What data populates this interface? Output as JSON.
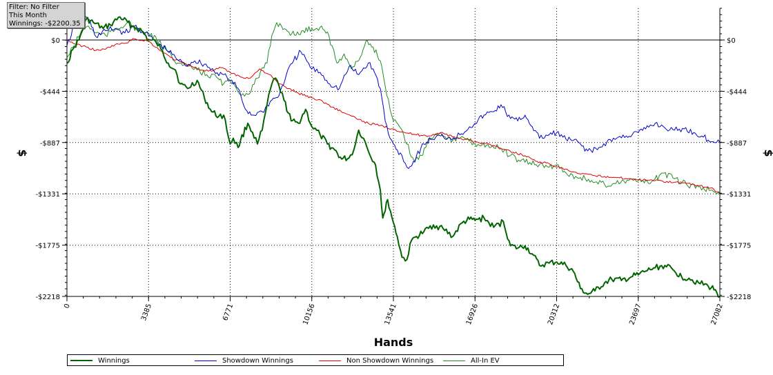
{
  "info_box": {
    "filter": "Filter: No Filter",
    "period": "This Month",
    "winnings": "Winnings: -$2200.35"
  },
  "chart_data": {
    "type": "line",
    "xlabel": "Hands",
    "ylabel": "$",
    "xlim": [
      0,
      27082
    ],
    "ylim": [
      -2218,
      0
    ],
    "x_ticks": [
      0,
      3385,
      6771,
      10156,
      13541,
      16926,
      20312,
      23697,
      27082
    ],
    "y_ticks": [
      0,
      -444,
      -887,
      -1331,
      -1775,
      -2218
    ],
    "y_tick_labels": [
      "$0",
      "-$444",
      "-$887",
      "-$1331",
      "-$1775",
      "-$2218"
    ],
    "grid": true,
    "legend_position": "bottom",
    "series": [
      {
        "name": "Winnings",
        "color": "#006400",
        "width": 2,
        "x": [
          0,
          300,
          500,
          800,
          1100,
          1500,
          1800,
          2200,
          2700,
          3100,
          3385,
          3700,
          3900,
          4200,
          4500,
          4700,
          5000,
          5400,
          5700,
          6000,
          6300,
          6500,
          6771,
          6900,
          7100,
          7200,
          7500,
          7700,
          7900,
          8100,
          8300,
          8500,
          8650,
          8800,
          9000,
          9300,
          9600,
          9900,
          10156,
          10500,
          10800,
          11100,
          11400,
          11700,
          11900,
          12100,
          12300,
          12500,
          12800,
          13000,
          13100,
          13200,
          13300,
          13541,
          13700,
          13900,
          14100,
          14300,
          14500,
          14800,
          15200,
          15600,
          16000,
          16400,
          16700,
          16926,
          17300,
          17700,
          18100,
          18400,
          18700,
          19000,
          19300,
          19600,
          20000,
          20312,
          20700,
          21000,
          21300,
          21600,
          21900,
          22300,
          22600,
          23000,
          23400,
          23697,
          24000,
          24400,
          24800,
          25200,
          25500,
          25800,
          26200,
          26600,
          26900,
          27082
        ],
        "y": [
          -200,
          -60,
          0,
          180,
          150,
          100,
          130,
          200,
          120,
          80,
          0,
          -20,
          -80,
          -200,
          -260,
          -380,
          -420,
          -350,
          -500,
          -620,
          -660,
          -650,
          -900,
          -850,
          -930,
          -870,
          -720,
          -800,
          -900,
          -780,
          -560,
          -380,
          -330,
          -400,
          -520,
          -700,
          -720,
          -600,
          -750,
          -820,
          -900,
          -950,
          -1030,
          -1020,
          -950,
          -780,
          -850,
          -960,
          -1080,
          -1300,
          -1540,
          -1480,
          -1380,
          -1580,
          -1700,
          -1880,
          -1900,
          -1730,
          -1700,
          -1660,
          -1600,
          -1630,
          -1700,
          -1580,
          -1550,
          -1560,
          -1540,
          -1620,
          -1570,
          -1780,
          -1800,
          -1780,
          -1850,
          -1950,
          -1930,
          -1920,
          -1950,
          -2000,
          -2150,
          -2200,
          -2170,
          -2100,
          -2070,
          -2080,
          -2050,
          -2030,
          -2000,
          -1970,
          -1950,
          -2000,
          -2050,
          -2060,
          -2100,
          -2130,
          -2160,
          -2218
        ]
      },
      {
        "name": "Showdown Winnings",
        "color": "#0000cc",
        "width": 1,
        "x": [
          0,
          300,
          600,
          900,
          1200,
          1600,
          2000,
          2400,
          2800,
          3385,
          3700,
          4100,
          4500,
          4900,
          5300,
          5700,
          6100,
          6500,
          6771,
          7100,
          7400,
          7700,
          8100,
          8500,
          8800,
          9100,
          9400,
          9700,
          10156,
          10500,
          10900,
          11300,
          11700,
          12100,
          12500,
          12700,
          13000,
          13200,
          13400,
          13541,
          13700,
          13900,
          14100,
          14300,
          14500,
          14800,
          15100,
          15500,
          15900,
          16300,
          16700,
          16926,
          17300,
          17700,
          18000,
          18400,
          18700,
          19000,
          19300,
          19600,
          20000,
          20312,
          20700,
          21000,
          21300,
          21600,
          22000,
          22400,
          22800,
          23200,
          23697,
          24000,
          24400,
          24800,
          25200,
          25600,
          26000,
          26400,
          26800,
          27082
        ],
        "y": [
          -50,
          120,
          200,
          180,
          30,
          80,
          100,
          60,
          120,
          40,
          -20,
          -80,
          -150,
          -220,
          -180,
          -210,
          -270,
          -300,
          -350,
          -420,
          -600,
          -650,
          -620,
          -520,
          -480,
          -300,
          -180,
          -100,
          -250,
          -280,
          -380,
          -420,
          -230,
          -300,
          -200,
          -250,
          -420,
          -700,
          -850,
          -900,
          -950,
          -1000,
          -1100,
          -1090,
          -1000,
          -900,
          -860,
          -830,
          -850,
          -820,
          -750,
          -720,
          -650,
          -620,
          -560,
          -680,
          -700,
          -650,
          -750,
          -850,
          -820,
          -800,
          -860,
          -870,
          -900,
          -960,
          -950,
          -880,
          -850,
          -830,
          -800,
          -770,
          -720,
          -760,
          -780,
          -770,
          -800,
          -840,
          -880,
          -887
        ]
      },
      {
        "name": "Non Showdown Winnings",
        "color": "#dd0000",
        "width": 1,
        "x": [
          0,
          400,
          800,
          1200,
          1600,
          2000,
          2400,
          2800,
          3385,
          3800,
          4300,
          4800,
          5200,
          5600,
          6000,
          6400,
          6771,
          7200,
          7600,
          8000,
          8400,
          8800,
          9200,
          9600,
          10156,
          10600,
          11000,
          11500,
          12000,
          12500,
          13000,
          13541,
          14000,
          14500,
          15000,
          15500,
          16000,
          16500,
          16926,
          17500,
          18000,
          18500,
          19000,
          19500,
          20000,
          20312,
          20800,
          21300,
          21800,
          22300,
          22800,
          23300,
          23697,
          24200,
          24700,
          25200,
          25700,
          26200,
          26700,
          27082
        ],
        "y": [
          0,
          -40,
          -60,
          -90,
          -80,
          -40,
          -30,
          10,
          -10,
          -80,
          -150,
          -200,
          -230,
          -260,
          -270,
          -240,
          -280,
          -320,
          -330,
          -250,
          -300,
          -380,
          -420,
          -460,
          -500,
          -530,
          -580,
          -630,
          -680,
          -720,
          -740,
          -770,
          -800,
          -820,
          -830,
          -800,
          -840,
          -860,
          -880,
          -900,
          -940,
          -970,
          -1000,
          -1050,
          -1070,
          -1100,
          -1130,
          -1160,
          -1170,
          -1180,
          -1190,
          -1200,
          -1210,
          -1210,
          -1220,
          -1230,
          -1240,
          -1260,
          -1280,
          -1320
        ]
      },
      {
        "name": "All-In EV",
        "color": "#228b22",
        "width": 1,
        "x": [
          0,
          300,
          600,
          900,
          1200,
          1600,
          2000,
          2500,
          3000,
          3385,
          3800,
          4200,
          4600,
          5000,
          5400,
          5800,
          6200,
          6500,
          6771,
          7100,
          7500,
          7900,
          8300,
          8500,
          8700,
          8900,
          9200,
          9500,
          9800,
          10156,
          10500,
          10800,
          11200,
          11500,
          11800,
          12100,
          12400,
          12700,
          13000,
          13200,
          13400,
          13541,
          13800,
          14100,
          14400,
          14700,
          15000,
          15500,
          16000,
          16500,
          16926,
          17400,
          17900,
          18400,
          18800,
          19200,
          19600,
          20000,
          20312,
          20700,
          21100,
          21500,
          21900,
          22300,
          22700,
          23100,
          23500,
          23697,
          24200,
          24700,
          25200,
          25700,
          26200,
          26700,
          27082
        ],
        "y": [
          -150,
          -50,
          80,
          120,
          60,
          40,
          90,
          150,
          80,
          60,
          -20,
          -100,
          -200,
          -230,
          -260,
          -300,
          -320,
          -380,
          -350,
          -450,
          -470,
          -330,
          -200,
          40,
          150,
          120,
          70,
          40,
          80,
          100,
          110,
          70,
          -200,
          -120,
          -250,
          -180,
          -10,
          -60,
          -180,
          -400,
          -600,
          -700,
          -750,
          -900,
          -1050,
          -1000,
          -850,
          -800,
          -870,
          -850,
          -900,
          -910,
          -930,
          -1000,
          -1050,
          -1060,
          -1080,
          -1100,
          -1080,
          -1150,
          -1180,
          -1200,
          -1230,
          -1250,
          -1240,
          -1220,
          -1200,
          -1220,
          -1240,
          -1150,
          -1200,
          -1250,
          -1270,
          -1300,
          -1331
        ]
      }
    ]
  }
}
